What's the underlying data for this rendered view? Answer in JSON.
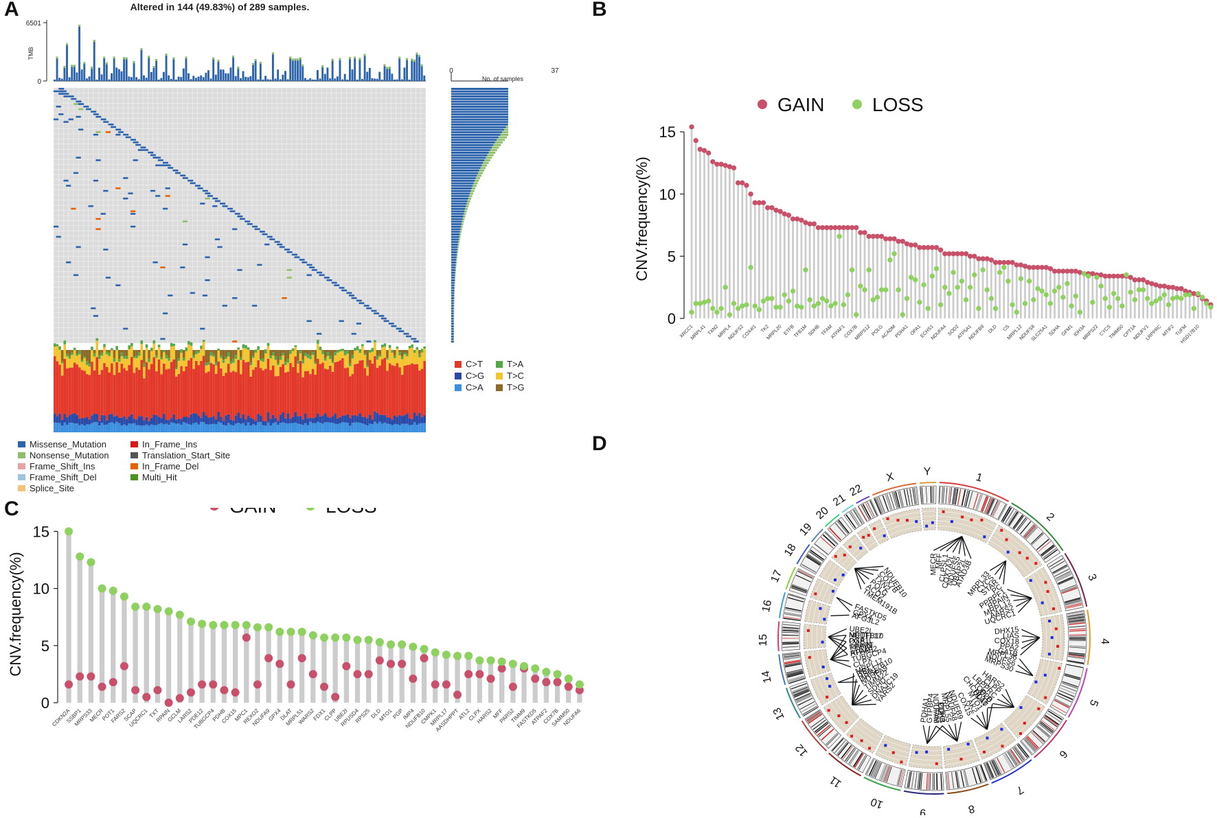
{
  "panel_labels": {
    "a": "A",
    "b": "B",
    "c": "C",
    "d": "D"
  },
  "colors": {
    "gain": "#c8506a",
    "loss": "#8fd160",
    "stem": "#cccccc",
    "missense": "#2c63ad",
    "nonsense": "#8fbf6a",
    "frameshift_ins": "#e9a1a8",
    "frameshift_del": "#9fc3dc",
    "splice": "#f2c27b",
    "inframe_ins": "#d7191c",
    "translation_start": "#555555",
    "inframe_del": "#e66101",
    "multi_hit": "#4d9221",
    "c_t": "#e2392b",
    "c_g": "#2a4aa8",
    "c_a": "#3d8fe0",
    "t_a": "#55a84a",
    "t_c": "#f4c430",
    "t_g": "#8b6a2a"
  },
  "panel_a": {
    "title": "Altered in 144 (49.83%) of 289 samples.",
    "tmb_label": "TMB",
    "tmb_max": "6501",
    "tmb_min": "0",
    "side_axis_min": "0",
    "side_axis_max": "37",
    "side_axis_label": "No. of samples",
    "titv_legend": {
      "c_t": "C>T",
      "c_g": "C>G",
      "c_a": "C>A",
      "t_a": "T>A",
      "t_c": "T>C",
      "t_g": "T>G"
    },
    "variant_legend": {
      "missense": "Missense_Mutation",
      "nonsense": "Nonsense_Mutation",
      "frameshift_ins": "Frame_Shift_Ins",
      "frameshift_del": "Frame_Shift_Del",
      "splice": "Splice_Site",
      "inframe_ins": "In_Frame_Ins",
      "translation_start": "Translation_Start_Site",
      "inframe_del": "In_Frame_Del",
      "multi_hit": "Multi_Hit"
    }
  },
  "chart_data": [
    {
      "id": "B",
      "type": "scatter",
      "subtype": "lollipop",
      "ylabel": "CNV.frequency(%)",
      "ylim": [
        0,
        16
      ],
      "yticks": [
        0,
        5,
        10,
        15
      ],
      "legend": [
        "GAIN",
        "LOSS"
      ],
      "gain": [
        15.4,
        14.3,
        13.6,
        13.5,
        13.3,
        12.6,
        12.4,
        12.4,
        12.3,
        12.2,
        12.1,
        10.9,
        10.9,
        10.7,
        10.0,
        9.3,
        9.3,
        9.3,
        8.9,
        8.9,
        8.7,
        8.6,
        8.4,
        8.3,
        8.0,
        8.0,
        7.9,
        7.7,
        7.6,
        7.6,
        7.3,
        7.3,
        7.3,
        7.3,
        7.3,
        7.3,
        7.3,
        7.3,
        7.3,
        7.3,
        6.9,
        6.9,
        6.6,
        6.6,
        6.6,
        6.6,
        6.4,
        6.4,
        6.4,
        6.2,
        6.2,
        6.0,
        5.9,
        5.9,
        5.7,
        5.7,
        5.7,
        5.7,
        5.7,
        5.5,
        5.2,
        5.2,
        5.2,
        5.2,
        5.2,
        5.2,
        5.0,
        5.0,
        4.8,
        4.8,
        4.8,
        4.7,
        4.5,
        4.5,
        4.5,
        4.5,
        4.5,
        4.3,
        4.3,
        4.2,
        4.1,
        4.1,
        4.1,
        4.1,
        4.1,
        4.0,
        3.8,
        3.8,
        3.8,
        3.8,
        3.8,
        3.8,
        3.7,
        3.6,
        3.6,
        3.6,
        3.5,
        3.5,
        3.4,
        3.4,
        3.4,
        3.4,
        3.4,
        3.4,
        3.3,
        3.1,
        3.1,
        3.1,
        2.9,
        2.8,
        2.7,
        2.6,
        2.6,
        2.5,
        2.5,
        2.4,
        2.4,
        2.2,
        2.1,
        2.0,
        1.9,
        1.6,
        1.4,
        1.1
      ],
      "loss": [
        0.5,
        1.2,
        1.2,
        1.3,
        1.4,
        0.8,
        0.5,
        0.8,
        2.5,
        0.3,
        1.2,
        0.8,
        1.0,
        1.1,
        4.1,
        1.0,
        0.7,
        1.4,
        1.6,
        1.6,
        0.9,
        0.9,
        1.9,
        1.4,
        2.2,
        1.0,
        0.9,
        3.9,
        1.5,
        1.0,
        1.2,
        1.6,
        1.4,
        1.0,
        1.2,
        6.6,
        1.1,
        1.9,
        3.9,
        0.3,
        2.6,
        2.3,
        3.9,
        1.5,
        1.7,
        2.3,
        2.3,
        4.7,
        5.2,
        2.3,
        0.3,
        1.6,
        3.3,
        3.1,
        1.3,
        2.7,
        0.8,
        3.4,
        4.0,
        1.1,
        2.5,
        2.0,
        3.7,
        2.5,
        3.0,
        1.5,
        2.5,
        3.5,
        0.8,
        3.9,
        2.3,
        1.6,
        0.8,
        3.7,
        4.1,
        3.0,
        1.1,
        0.5,
        3.2,
        1.2,
        3.0,
        1.5,
        2.4,
        2.2,
        1.9,
        1.2,
        2.2,
        2.5,
        1.7,
        2.8,
        1.0,
        1.8,
        0.5,
        3.6,
        3.4,
        1.3,
        3.3,
        2.6,
        1.6,
        0.9,
        2.0,
        1.6,
        1.0,
        3.5,
        2.1,
        1.5,
        2.3,
        2.3,
        1.6,
        1.2,
        1.4,
        1.6,
        1.9,
        1.1,
        1.6,
        1.7,
        1.6,
        1.9,
        1.9,
        0.8,
        2.0,
        1.7,
        1.2,
        0.9
      ],
      "categories_visible": [
        "XRCC1",
        "MRPL41",
        "TXN2",
        "MRPL4",
        "NDUFS2",
        "COX4I1",
        "TK2",
        "MRPL20",
        "ETFB",
        "TFB1M",
        "SDHB",
        "TFAM",
        "ATPAF1",
        "COX7B",
        "MRPS12",
        "POLG",
        "ACADM",
        "PDHA1",
        "OPA1",
        "ECHS1",
        "NDUFA4",
        "SOD2",
        "ATP5A1",
        "NDUFB9",
        "DLD",
        "CS",
        "MRPL12",
        "NDUFS8",
        "SLC25A1",
        "SDHA",
        "GFM1",
        "IDH3A",
        "MRPS22",
        "CYCS",
        "TIMM50",
        "CPT1A",
        "NDUFV1",
        "LRPPRC",
        "MTIF2",
        "TUFM",
        "HSD17B10"
      ]
    },
    {
      "id": "C",
      "type": "scatter",
      "subtype": "lollipop",
      "ylabel": "CNV.frequency(%)",
      "ylim": [
        0,
        15.5
      ],
      "yticks": [
        0,
        5,
        10,
        15
      ],
      "legend": [
        "GAIN",
        "LOSS"
      ],
      "categories": [
        "CDKN2A",
        "SSBP1",
        "MRPS33",
        "MECR",
        "POT1",
        "FARS2",
        "SCAP",
        "UQCRC1",
        "TXT",
        "RPAIN",
        "GCLM",
        "LARS2",
        "PDE12",
        "TUBGCP4",
        "PDHB",
        "COX15",
        "MPC1",
        "REXO2",
        "NDUFA9",
        "GPX4",
        "DLAT",
        "MRPL51",
        "WARS2",
        "FDX1",
        "CLPP",
        "UBE2I",
        "RPUSD4",
        "RPS25",
        "DLD",
        "MTO1",
        "PGP",
        "IMP4",
        "NDUFB10",
        "CMPK1",
        "MRPL17",
        "AASDHPPT",
        "ATL2",
        "CLPX",
        "HARS2",
        "MFF",
        "PARS2",
        "TIMM9",
        "FASTKD5",
        "ATPAF2",
        "COX7B",
        "SAMM50",
        "NDUFA6"
      ],
      "loss": [
        15.0,
        12.8,
        12.3,
        10.0,
        9.8,
        9.3,
        8.4,
        8.4,
        8.2,
        8.0,
        7.7,
        7.1,
        6.9,
        6.8,
        6.8,
        6.8,
        6.8,
        6.6,
        6.6,
        6.2,
        6.2,
        6.2,
        5.9,
        5.7,
        5.7,
        5.7,
        5.5,
        5.5,
        5.3,
        5.1,
        5.1,
        4.9,
        4.7,
        4.4,
        4.2,
        4.1,
        4.1,
        3.7,
        3.7,
        3.6,
        3.4,
        3.2,
        3.0,
        2.7,
        2.5,
        2.1,
        1.6
      ],
      "gain": [
        1.6,
        2.3,
        2.3,
        1.4,
        1.8,
        3.2,
        1.1,
        0.5,
        1.1,
        0.0,
        0.4,
        0.9,
        1.6,
        1.6,
        1.1,
        0.9,
        5.7,
        1.6,
        3.9,
        3.4,
        1.6,
        3.9,
        2.5,
        1.4,
        0.5,
        3.2,
        2.5,
        2.5,
        3.7,
        3.4,
        3.4,
        2.1,
        3.9,
        1.6,
        1.6,
        0.7,
        2.5,
        2.5,
        2.1,
        3.0,
        1.4,
        3.0,
        2.1,
        1.8,
        1.8,
        1.4,
        1.1
      ]
    }
  ],
  "panel_d": {
    "chromosomes": [
      "1",
      "2",
      "3",
      "4",
      "5",
      "6",
      "7",
      "8",
      "9",
      "10",
      "11",
      "12",
      "13",
      "14",
      "15",
      "16",
      "17",
      "18",
      "19",
      "20",
      "21",
      "22",
      "X",
      "Y"
    ],
    "gene_groups": [
      [
        "MECR",
        "MFF",
        "CLPSL1",
        "COX7A2L",
        "NDUFS5",
        "UBAP2L",
        "ATAD3B"
      ],
      [
        "MRPL33",
        "CYCS",
        "STAR",
        "PC"
      ],
      [
        "PPRPF1",
        "RPAIN",
        "MRPL12",
        "AARS2",
        "UQCRC1"
      ],
      [
        "DHX15",
        "LIAS",
        "COX18",
        "PPA2",
        "GATB"
      ],
      [
        "MRPL36",
        "NDUFS6",
        "MRPS30"
      ],
      [
        "HARS2",
        "CLPP",
        "LRPPRC",
        "TOP2B",
        "CHCHD10"
      ],
      [
        "DLD",
        "DLAT",
        "MTO1",
        "AK2",
        "COX15"
      ],
      [
        "NDUFB9",
        "NDUFA8",
        "MRPL55",
        "PDHB",
        "NDUFA6"
      ],
      [
        "CDK1",
        "TFAM",
        "GTPBP4",
        "PDHA1"
      ],
      [
        "YARS2",
        "DNAJC19",
        "SDHD",
        "TIMM22",
        "NDUFA9",
        "HSD17B10",
        "MRPL17"
      ],
      [
        "INTS6",
        "RB1"
      ],
      [
        "CLPX",
        "TUBGCP4",
        "RPAP1",
        "TIMM9",
        "OXA1L",
        "METTL17"
      ],
      [
        "ATPAF2",
        "RPAIN",
        "PGP",
        "NDUFB10",
        "UBE2I"
      ],
      [
        "AFG3L2"
      ],
      [
        "GPX4",
        "FASTKD5"
      ],
      [
        "TMEM191B",
        "ACO2",
        "POLG",
        "TXN2",
        "COX7B",
        "NDUFB10"
      ]
    ]
  }
}
